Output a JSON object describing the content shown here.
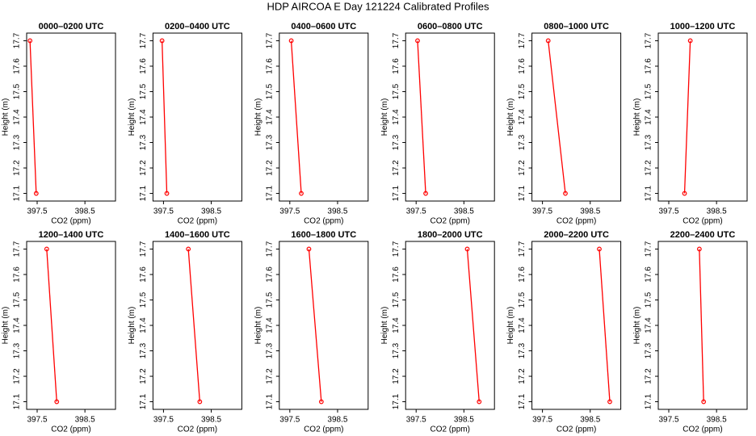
{
  "title": "HDP AIRCOA E  Day 121224  Calibrated Profiles",
  "chart_data": [
    {
      "type": "line",
      "title": "0000–0200 UTC",
      "xlabel": "CO2 (ppm)",
      "ylabel": "Height (m)",
      "xlim": [
        397.28,
        399.14
      ],
      "ylim": [
        17.07,
        17.73
      ],
      "xticks": [
        397.5,
        398.5
      ],
      "yticks": [
        17.1,
        17.2,
        17.3,
        17.4,
        17.5,
        17.6,
        17.7
      ],
      "series": [
        {
          "color": "#ff0000",
          "x": [
            397.35,
            397.48
          ],
          "values": [
            17.7,
            17.1
          ]
        }
      ]
    },
    {
      "type": "line",
      "title": "0200–0400 UTC",
      "xlabel": "CO2 (ppm)",
      "ylabel": "Height (m)",
      "xlim": [
        397.28,
        399.14
      ],
      "ylim": [
        17.07,
        17.73
      ],
      "xticks": [
        397.5,
        398.5
      ],
      "yticks": [
        17.1,
        17.2,
        17.3,
        17.4,
        17.5,
        17.6,
        17.7
      ],
      "series": [
        {
          "color": "#ff0000",
          "x": [
            397.47,
            397.57
          ],
          "values": [
            17.7,
            17.1
          ]
        }
      ]
    },
    {
      "type": "line",
      "title": "0400–0600 UTC",
      "xlabel": "CO2 (ppm)",
      "ylabel": "Height (m)",
      "xlim": [
        397.28,
        399.14
      ],
      "ylim": [
        17.07,
        17.73
      ],
      "xticks": [
        397.5,
        398.5
      ],
      "yticks": [
        17.1,
        17.2,
        17.3,
        17.4,
        17.5,
        17.6,
        17.7
      ],
      "series": [
        {
          "color": "#ff0000",
          "x": [
            397.53,
            397.74
          ],
          "values": [
            17.7,
            17.1
          ]
        }
      ]
    },
    {
      "type": "line",
      "title": "0600–0800 UTC",
      "xlabel": "CO2 (ppm)",
      "ylabel": "Height (m)",
      "xlim": [
        397.28,
        399.14
      ],
      "ylim": [
        17.07,
        17.73
      ],
      "xticks": [
        397.5,
        398.5
      ],
      "yticks": [
        17.1,
        17.2,
        17.3,
        17.4,
        17.5,
        17.6,
        17.7
      ],
      "series": [
        {
          "color": "#ff0000",
          "x": [
            397.53,
            397.7
          ],
          "values": [
            17.7,
            17.1
          ]
        }
      ]
    },
    {
      "type": "line",
      "title": "0800–1000 UTC",
      "xlabel": "CO2 (ppm)",
      "ylabel": "Height (m)",
      "xlim": [
        397.28,
        399.14
      ],
      "ylim": [
        17.07,
        17.73
      ],
      "xticks": [
        397.5,
        398.5
      ],
      "yticks": [
        17.1,
        17.2,
        17.3,
        17.4,
        17.5,
        17.6,
        17.7
      ],
      "series": [
        {
          "color": "#ff0000",
          "x": [
            397.62,
            397.98
          ],
          "values": [
            17.7,
            17.1
          ]
        }
      ]
    },
    {
      "type": "line",
      "title": "1000–1200 UTC",
      "xlabel": "CO2 (ppm)",
      "ylabel": "Height (m)",
      "xlim": [
        397.28,
        399.14
      ],
      "ylim": [
        17.07,
        17.73
      ],
      "xticks": [
        397.5,
        398.5
      ],
      "yticks": [
        17.1,
        17.2,
        17.3,
        17.4,
        17.5,
        17.6,
        17.7
      ],
      "series": [
        {
          "color": "#ff0000",
          "x": [
            397.95,
            397.83
          ],
          "values": [
            17.7,
            17.1
          ]
        }
      ]
    },
    {
      "type": "line",
      "title": "1200–1400 UTC",
      "xlabel": "CO2 (ppm)",
      "ylabel": "Height (m)",
      "xlim": [
        397.28,
        399.14
      ],
      "ylim": [
        17.07,
        17.73
      ],
      "xticks": [
        397.5,
        398.5
      ],
      "yticks": [
        17.1,
        17.2,
        17.3,
        17.4,
        17.5,
        17.6,
        17.7
      ],
      "series": [
        {
          "color": "#ff0000",
          "x": [
            397.7,
            397.91
          ],
          "values": [
            17.7,
            17.1
          ]
        }
      ]
    },
    {
      "type": "line",
      "title": "1400–1600 UTC",
      "xlabel": "CO2 (ppm)",
      "ylabel": "Height (m)",
      "xlim": [
        397.28,
        399.14
      ],
      "ylim": [
        17.07,
        17.73
      ],
      "xticks": [
        397.5,
        398.5
      ],
      "yticks": [
        17.1,
        17.2,
        17.3,
        17.4,
        17.5,
        17.6,
        17.7
      ],
      "series": [
        {
          "color": "#ff0000",
          "x": [
            398.02,
            398.26
          ],
          "values": [
            17.7,
            17.1
          ]
        }
      ]
    },
    {
      "type": "line",
      "title": "1600–1800 UTC",
      "xlabel": "CO2 (ppm)",
      "ylabel": "Height (m)",
      "xlim": [
        397.28,
        399.14
      ],
      "ylim": [
        17.07,
        17.73
      ],
      "xticks": [
        397.5,
        398.5
      ],
      "yticks": [
        17.1,
        17.2,
        17.3,
        17.4,
        17.5,
        17.6,
        17.7
      ],
      "series": [
        {
          "color": "#ff0000",
          "x": [
            397.9,
            398.16
          ],
          "values": [
            17.7,
            17.1
          ]
        }
      ]
    },
    {
      "type": "line",
      "title": "1800–2000 UTC",
      "xlabel": "CO2 (ppm)",
      "ylabel": "Height (m)",
      "xlim": [
        397.28,
        399.14
      ],
      "ylim": [
        17.07,
        17.73
      ],
      "xticks": [
        397.5,
        398.5
      ],
      "yticks": [
        17.1,
        17.2,
        17.3,
        17.4,
        17.5,
        17.6,
        17.7
      ],
      "series": [
        {
          "color": "#ff0000",
          "x": [
            398.57,
            398.82
          ],
          "values": [
            17.7,
            17.1
          ]
        }
      ]
    },
    {
      "type": "line",
      "title": "2000–2200 UTC",
      "xlabel": "CO2 (ppm)",
      "ylabel": "Height (m)",
      "xlim": [
        397.28,
        399.14
      ],
      "ylim": [
        17.07,
        17.73
      ],
      "xticks": [
        397.5,
        398.5
      ],
      "yticks": [
        17.1,
        17.2,
        17.3,
        17.4,
        17.5,
        17.6,
        17.7
      ],
      "series": [
        {
          "color": "#ff0000",
          "x": [
            398.69,
            398.91
          ],
          "values": [
            17.7,
            17.1
          ]
        }
      ]
    },
    {
      "type": "line",
      "title": "2200–2400 UTC",
      "xlabel": "CO2 (ppm)",
      "ylabel": "Height (m)",
      "xlim": [
        397.28,
        399.14
      ],
      "ylim": [
        17.07,
        17.73
      ],
      "xticks": [
        397.5,
        398.5
      ],
      "yticks": [
        17.1,
        17.2,
        17.3,
        17.4,
        17.5,
        17.6,
        17.7
      ],
      "series": [
        {
          "color": "#ff0000",
          "x": [
            398.14,
            398.23
          ],
          "values": [
            17.7,
            17.1
          ]
        }
      ]
    }
  ]
}
